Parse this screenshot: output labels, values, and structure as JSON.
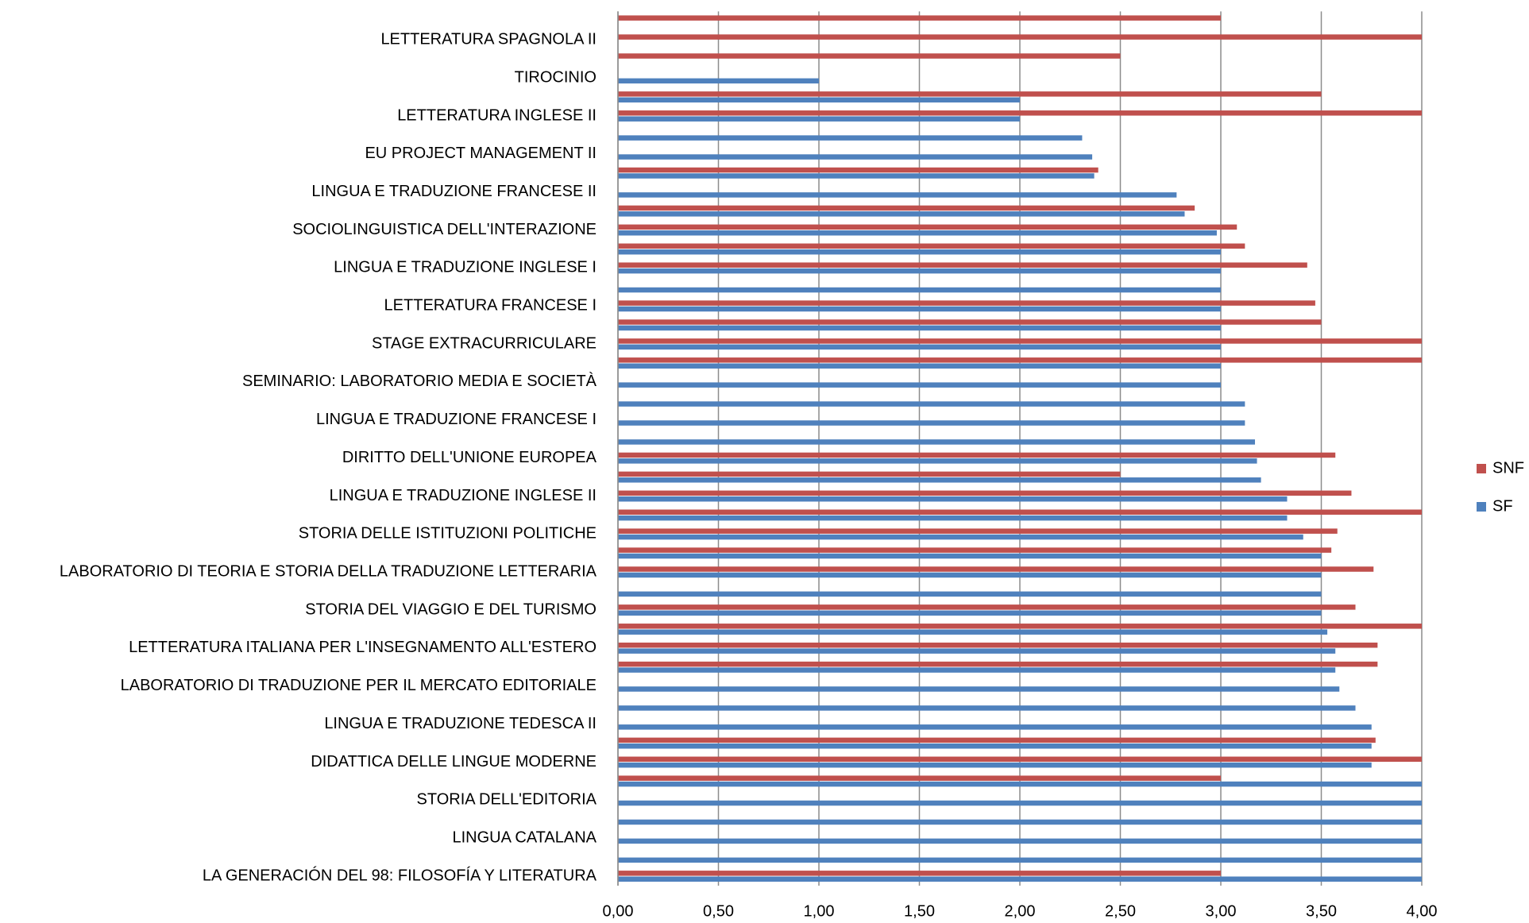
{
  "chart_data": {
    "type": "hbar",
    "categories": [
      null,
      "LETTERATURA SPAGNOLA II",
      null,
      "TIROCINIO",
      null,
      "LETTERATURA INGLESE II",
      null,
      "EU PROJECT MANAGEMENT II",
      null,
      "LINGUA E TRADUZIONE FRANCESE II",
      null,
      "SOCIOLINGUISTICA DELL'INTERAZIONE",
      null,
      "LINGUA E TRADUZIONE INGLESE I",
      null,
      "LETTERATURA FRANCESE   I",
      null,
      "STAGE EXTRACURRICULARE",
      null,
      "SEMINARIO: LABORATORIO MEDIA E SOCIETÀ",
      null,
      "LINGUA E TRADUZIONE FRANCESE I",
      null,
      "DIRITTO DELL'UNIONE EUROPEA",
      null,
      "LINGUA E TRADUZIONE INGLESE II",
      null,
      "STORIA DELLE ISTITUZIONI POLITICHE",
      null,
      "LABORATORIO DI TEORIA E STORIA DELLA TRADUZIONE LETTERARIA",
      null,
      "STORIA DEL VIAGGIO E DEL TURISMO",
      null,
      "LETTERATURA ITALIANA PER L'INSEGNAMENTO ALL'ESTERO",
      null,
      "LABORATORIO DI TRADUZIONE PER IL MERCATO EDITORIALE",
      null,
      "LINGUA E TRADUZIONE TEDESCA II",
      null,
      "DIDATTICA DELLE LINGUE MODERNE",
      null,
      "STORIA DELL'EDITORIA",
      null,
      "LINGUA CATALANA",
      null,
      "LA GENERACIÓN DEL 98: FILOSOFÍA Y LITERATURA"
    ],
    "series": [
      {
        "name": "SNF",
        "color": "#c0504d",
        "values": [
          3.0,
          4.0,
          2.5,
          null,
          3.5,
          4.0,
          null,
          null,
          2.39,
          null,
          2.87,
          3.08,
          3.12,
          3.43,
          null,
          3.47,
          3.5,
          4.0,
          4.0,
          null,
          null,
          null,
          null,
          3.57,
          2.5,
          3.65,
          4.0,
          3.58,
          3.55,
          3.76,
          null,
          3.67,
          4.0,
          3.78,
          3.78,
          null,
          null,
          null,
          3.77,
          4.0,
          3.0,
          null,
          null,
          null,
          null,
          3.0
        ]
      },
      {
        "name": "SF",
        "color": "#4f81bd",
        "values": [
          null,
          null,
          null,
          1.0,
          2.0,
          2.0,
          2.31,
          2.36,
          2.37,
          2.78,
          2.82,
          2.98,
          3.0,
          3.0,
          3.0,
          3.0,
          3.0,
          3.0,
          3.0,
          3.0,
          3.12,
          3.12,
          3.17,
          3.18,
          3.2,
          3.33,
          3.33,
          3.41,
          3.5,
          3.5,
          3.5,
          3.5,
          3.53,
          3.57,
          3.57,
          3.59,
          3.67,
          3.75,
          3.75,
          3.75,
          4.0,
          4.0,
          4.0,
          4.0,
          4.0,
          4.0
        ]
      }
    ],
    "xlim": [
      0,
      4
    ],
    "xticks": [
      {
        "value": 0,
        "label": "0,00"
      },
      {
        "value": 0.5,
        "label": "0,50"
      },
      {
        "value": 1,
        "label": "1,00"
      },
      {
        "value": 1.5,
        "label": "1,50"
      },
      {
        "value": 2,
        "label": "2,00"
      },
      {
        "value": 2.5,
        "label": "2,50"
      },
      {
        "value": 3,
        "label": "3,00"
      },
      {
        "value": 3.5,
        "label": "3,50"
      },
      {
        "value": 4,
        "label": "4,00"
      }
    ],
    "grid": true,
    "legend": "right"
  }
}
